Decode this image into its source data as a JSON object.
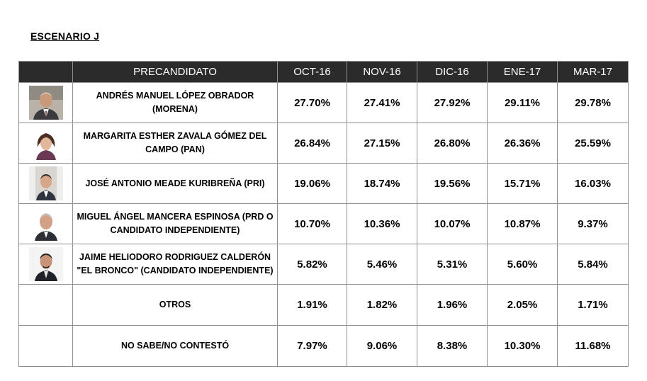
{
  "title": "ESCENARIO J",
  "table": {
    "headers": [
      "",
      "PRECANDIDATO",
      "OCT-16",
      "NOV-16",
      "DIC-16",
      "ENE-17",
      "MAR-17"
    ],
    "rows": [
      {
        "name": "ANDRÉS MANUEL LÓPEZ OBRADOR (MORENA)",
        "photo": "candidate-photo",
        "values": [
          "27.70%",
          "27.41%",
          "27.92%",
          "29.11%",
          "29.78%"
        ]
      },
      {
        "name": "MARGARITA ESTHER ZAVALA GÓMEZ DEL CAMPO (PAN)",
        "photo": "candidate-photo",
        "values": [
          "26.84%",
          "27.15%",
          "26.80%",
          "26.36%",
          "25.59%"
        ]
      },
      {
        "name": "JOSÉ ANTONIO MEADE KURIBREÑA (PRI)",
        "photo": "candidate-photo",
        "values": [
          "19.06%",
          "18.74%",
          "19.56%",
          "15.71%",
          "16.03%"
        ]
      },
      {
        "name": "MIGUEL ÁNGEL MANCERA ESPINOSA (PRD O CANDIDATO INDEPENDIENTE)",
        "photo": "candidate-photo",
        "values": [
          "10.70%",
          "10.36%",
          "10.07%",
          "10.87%",
          "9.37%"
        ]
      },
      {
        "name": "JAIME HELIODORO RODRIGUEZ CALDERÓN \"EL BRONCO\" (CANDIDATO INDEPENDIENTE)",
        "photo": "candidate-photo",
        "values": [
          "5.82%",
          "5.46%",
          "5.31%",
          "5.60%",
          "5.84%"
        ]
      },
      {
        "name": "OTROS",
        "photo": "",
        "values": [
          "1.91%",
          "1.82%",
          "1.96%",
          "2.05%",
          "1.71%"
        ]
      },
      {
        "name": "NO SABE/NO CONTESTÓ",
        "photo": "",
        "values": [
          "7.97%",
          "9.06%",
          "8.38%",
          "10.30%",
          "11.68%"
        ]
      }
    ]
  }
}
